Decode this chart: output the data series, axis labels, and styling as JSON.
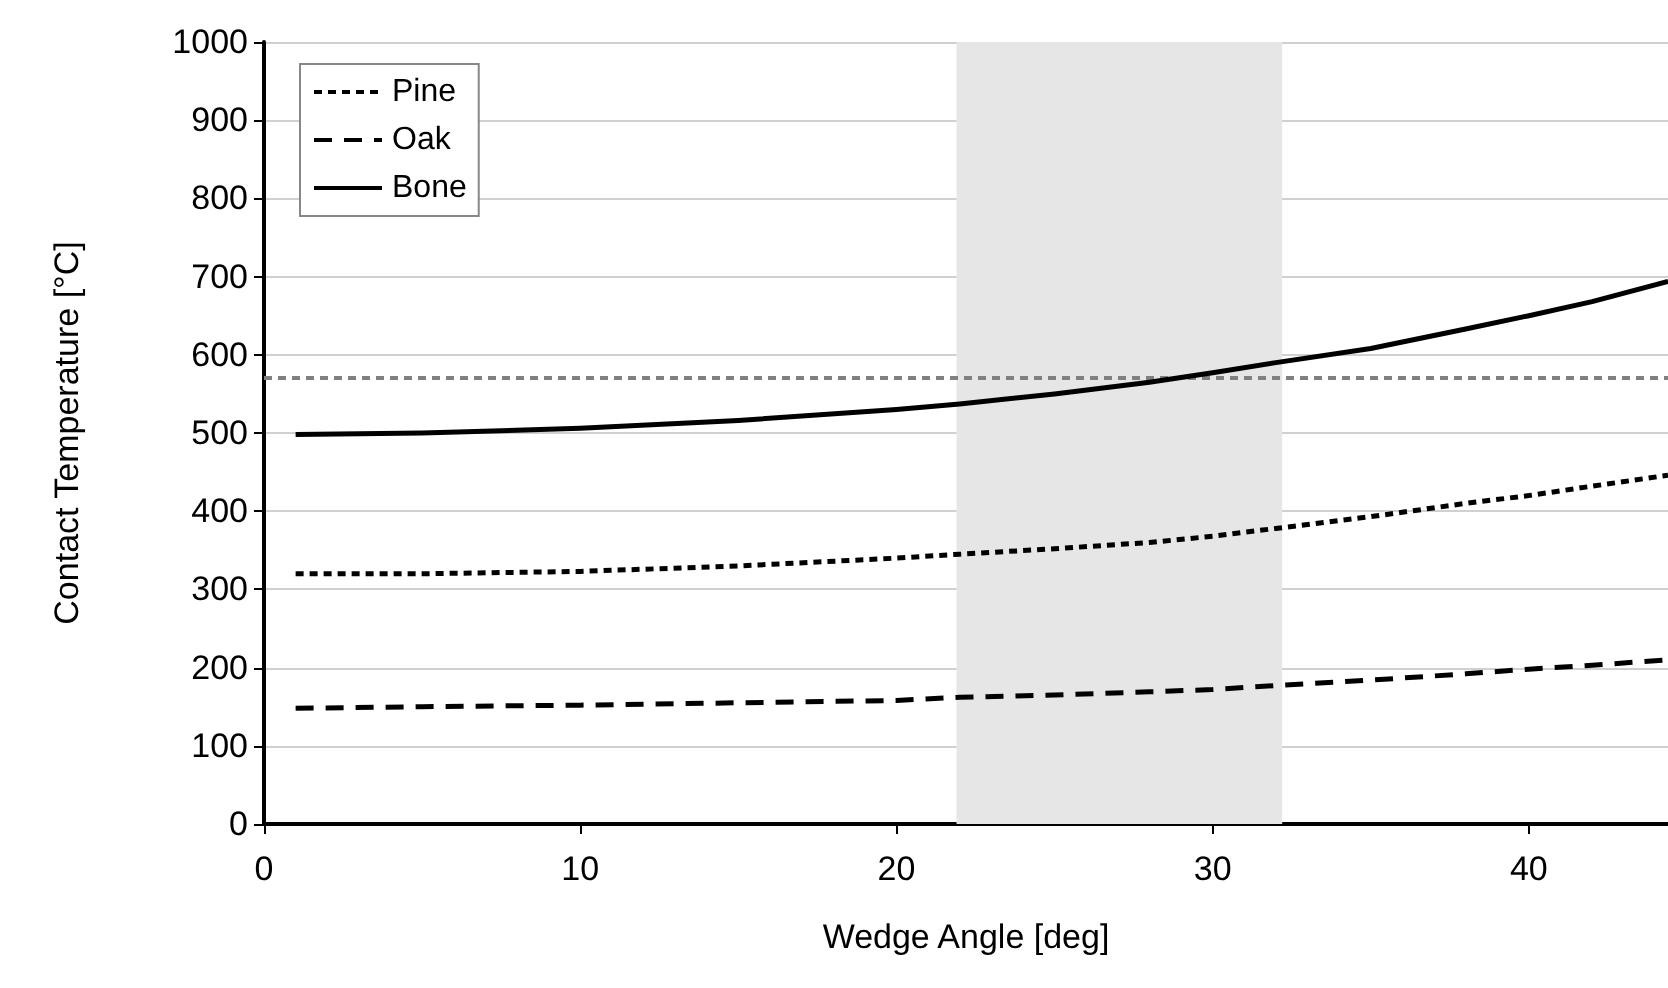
{
  "chart_data": {
    "type": "line",
    "xlabel": "Wedge Angle [deg]",
    "ylabel": "Contact Temperature [°C]",
    "x": [
      1,
      5,
      10,
      15,
      20,
      22,
      25,
      28,
      30,
      32,
      35,
      38,
      40,
      42,
      44.4
    ],
    "series": [
      {
        "name": "Pine",
        "color": "#000000",
        "line_style": "dotted",
        "values": [
          320,
          320,
          323,
          330,
          340,
          345,
          352,
          360,
          368,
          378,
          393,
          410,
          420,
          432,
          446
        ]
      },
      {
        "name": "Oak",
        "color": "#000000",
        "line_style": "dashed",
        "values": [
          148,
          150,
          152,
          155,
          158,
          162,
          165,
          169,
          172,
          177,
          184,
          192,
          198,
          203,
          210
        ]
      },
      {
        "name": "Bone",
        "color": "#000000",
        "line_style": "solid",
        "values": [
          498,
          500,
          506,
          516,
          530,
          537,
          550,
          565,
          577,
          590,
          608,
          633,
          650,
          668,
          694
        ]
      }
    ],
    "xlim": [
      0,
      44.4
    ],
    "xticks": [
      0,
      10,
      20,
      30,
      40
    ],
    "ylim": [
      0,
      1000
    ],
    "yticks": [
      0,
      100,
      200,
      300,
      400,
      500,
      600,
      700,
      800,
      900,
      1000
    ],
    "grid": "y",
    "legend": "top left",
    "marker": "none",
    "ref_lines": [
      {
        "axis": "y",
        "value": 570,
        "color": "#808080",
        "line_style": "dotted"
      }
    ],
    "bands": [
      {
        "axis": "x",
        "from": 21.9,
        "to": 32.2,
        "color": "#e6e6e6"
      }
    ]
  }
}
